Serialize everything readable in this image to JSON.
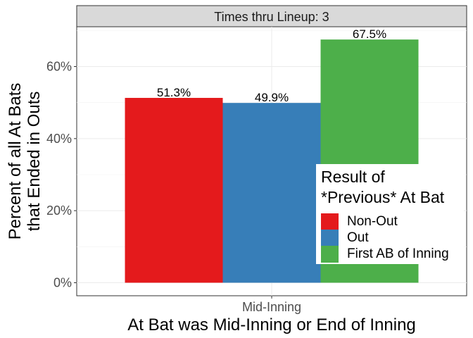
{
  "chart_data": {
    "type": "bar",
    "facet": "Times thru Lineup: 3",
    "categories": [
      "Mid-Inning"
    ],
    "series": [
      {
        "name": "Non-Out",
        "values": [
          51.3
        ],
        "label": "51.3%",
        "color": "#E41A1C"
      },
      {
        "name": "Out",
        "values": [
          49.9
        ],
        "label": "49.9%",
        "color": "#377EB8"
      },
      {
        "name": "First AB of Inning",
        "values": [
          67.5
        ],
        "label": "67.5%",
        "color": "#4DAF4A"
      }
    ],
    "ylim": [
      0,
      71
    ],
    "yticks": [
      0,
      20,
      40,
      60
    ],
    "ytick_labels": [
      "0%",
      "20%",
      "40%",
      "60%"
    ],
    "xlabel": "At Bat was Mid-Inning or End of Inning",
    "ylabel_lines": [
      "Percent of all At Bats",
      "that Ended in Outs"
    ],
    "legend": {
      "title": "Result of\n*Previous* At Bat",
      "position": "right, overlapping plot",
      "entries": [
        "Non-Out",
        "Out",
        "First AB of Inning"
      ]
    },
    "grid": true,
    "panel_border": true,
    "strip_fill": "#D9D9D9"
  }
}
